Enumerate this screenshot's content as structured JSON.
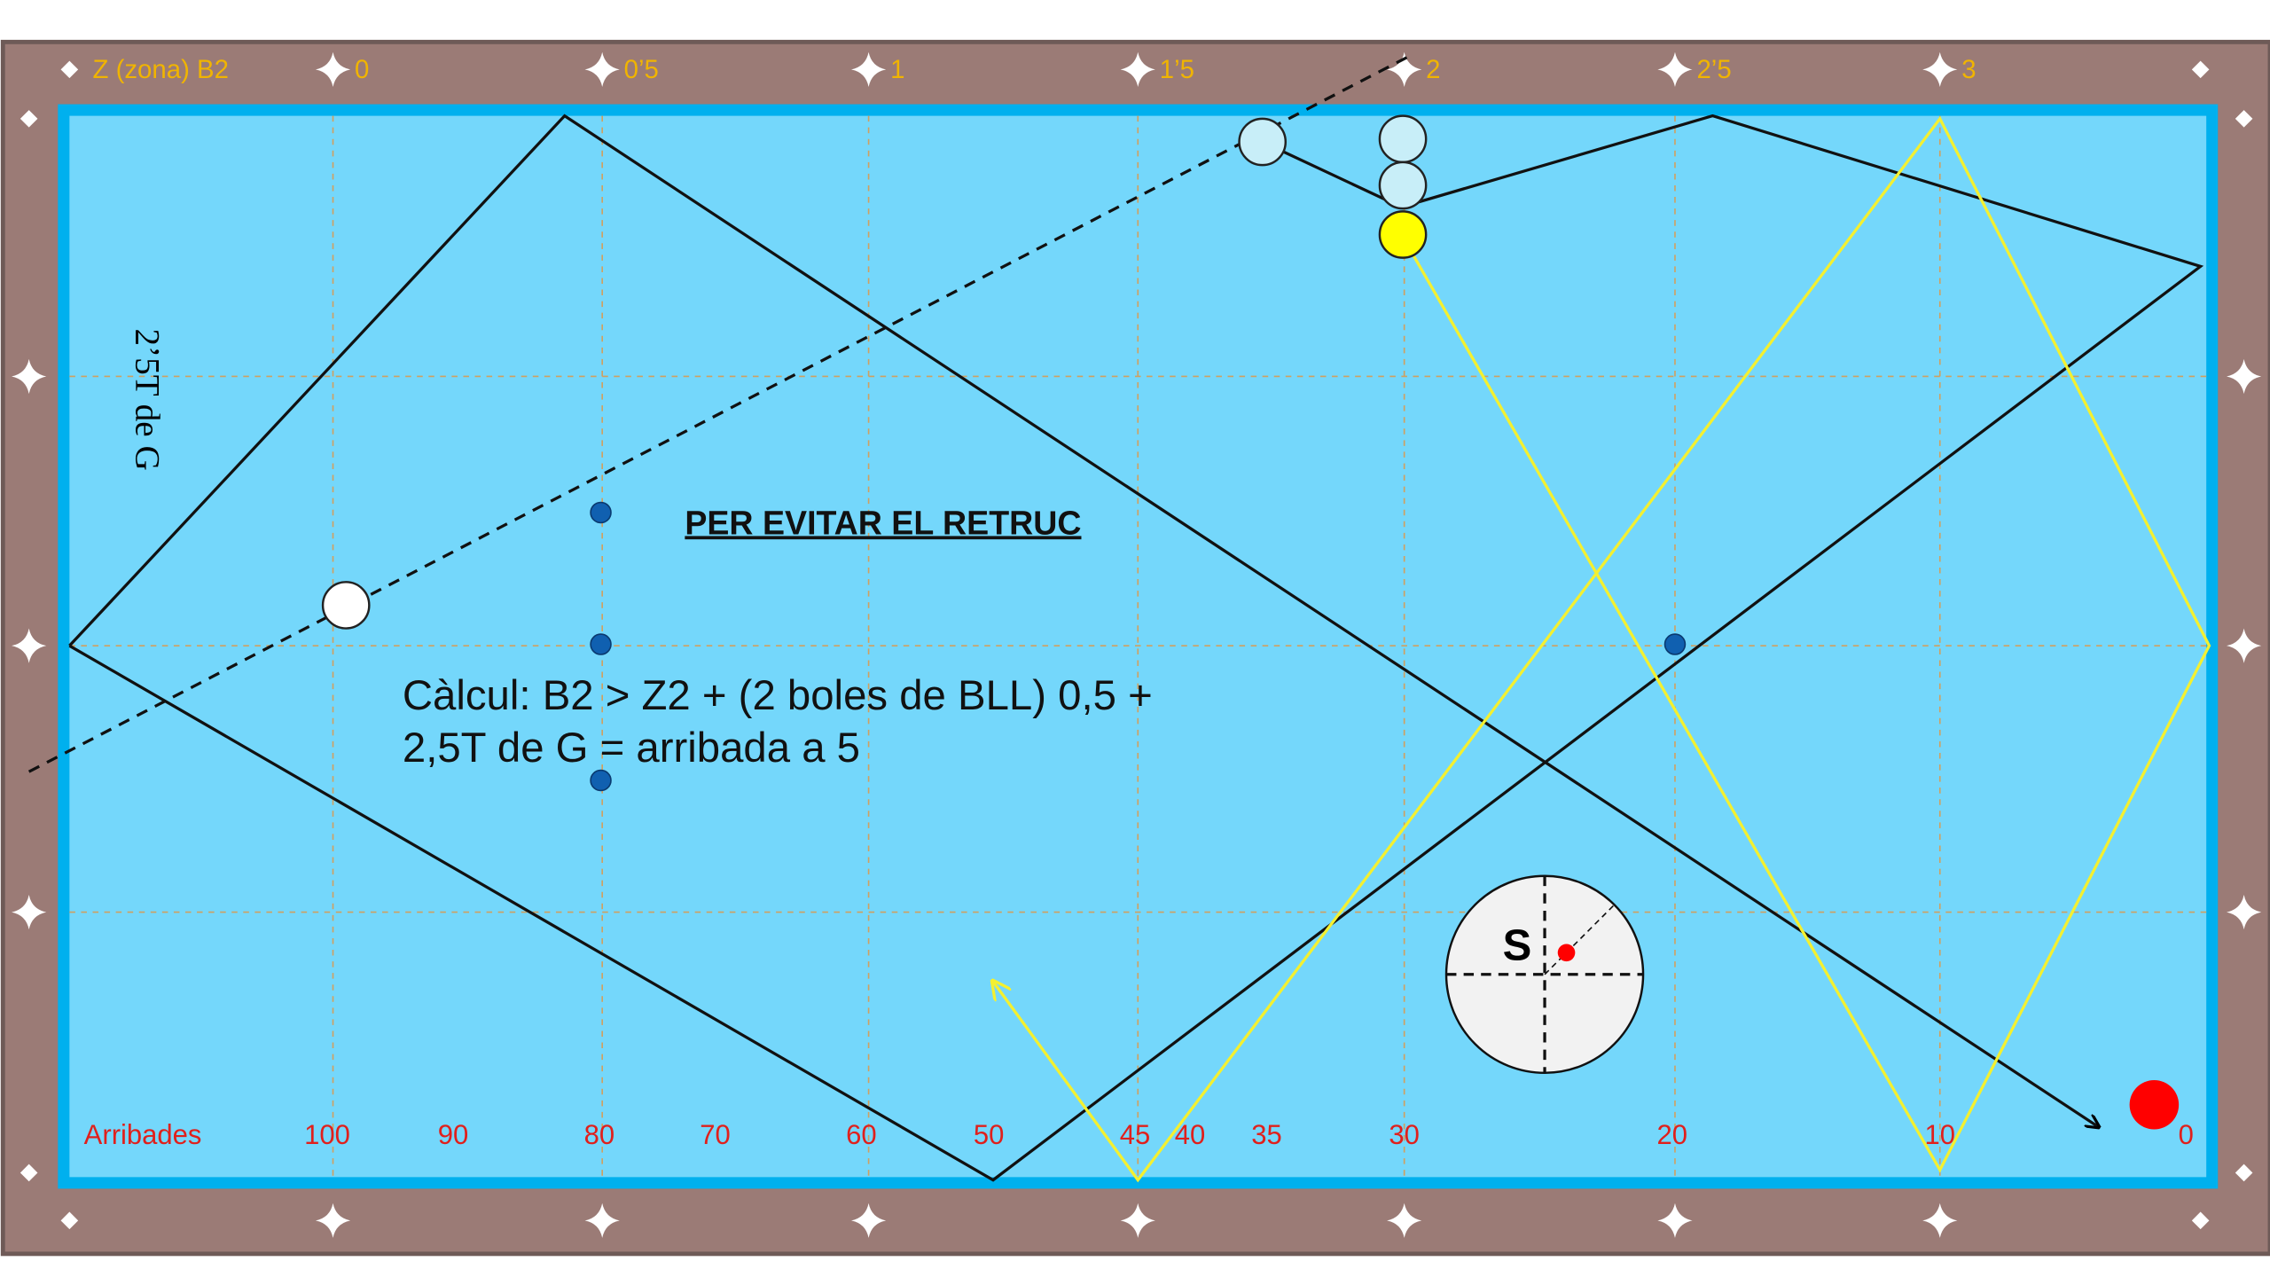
{
  "labels": {
    "zone": "Z (zona) B2",
    "side": "2’5T de G",
    "title": "PER EVITAR EL RETRUC",
    "calc": [
      "Càlcul: B2 > Z2 + (2 boles de BLL) 0,5 +",
      "2,5T de G = arribada a 5"
    ],
    "spin": "S",
    "arrivals_title": "Arribades"
  },
  "top_scale": [
    "0",
    "0’5",
    "1",
    "1’5",
    "2",
    "2’5",
    "3"
  ],
  "arrivals": [
    "100",
    "90",
    "80",
    "70",
    "60",
    "50",
    "45",
    "40",
    "35",
    "30",
    "20",
    "10",
    "0"
  ]
}
